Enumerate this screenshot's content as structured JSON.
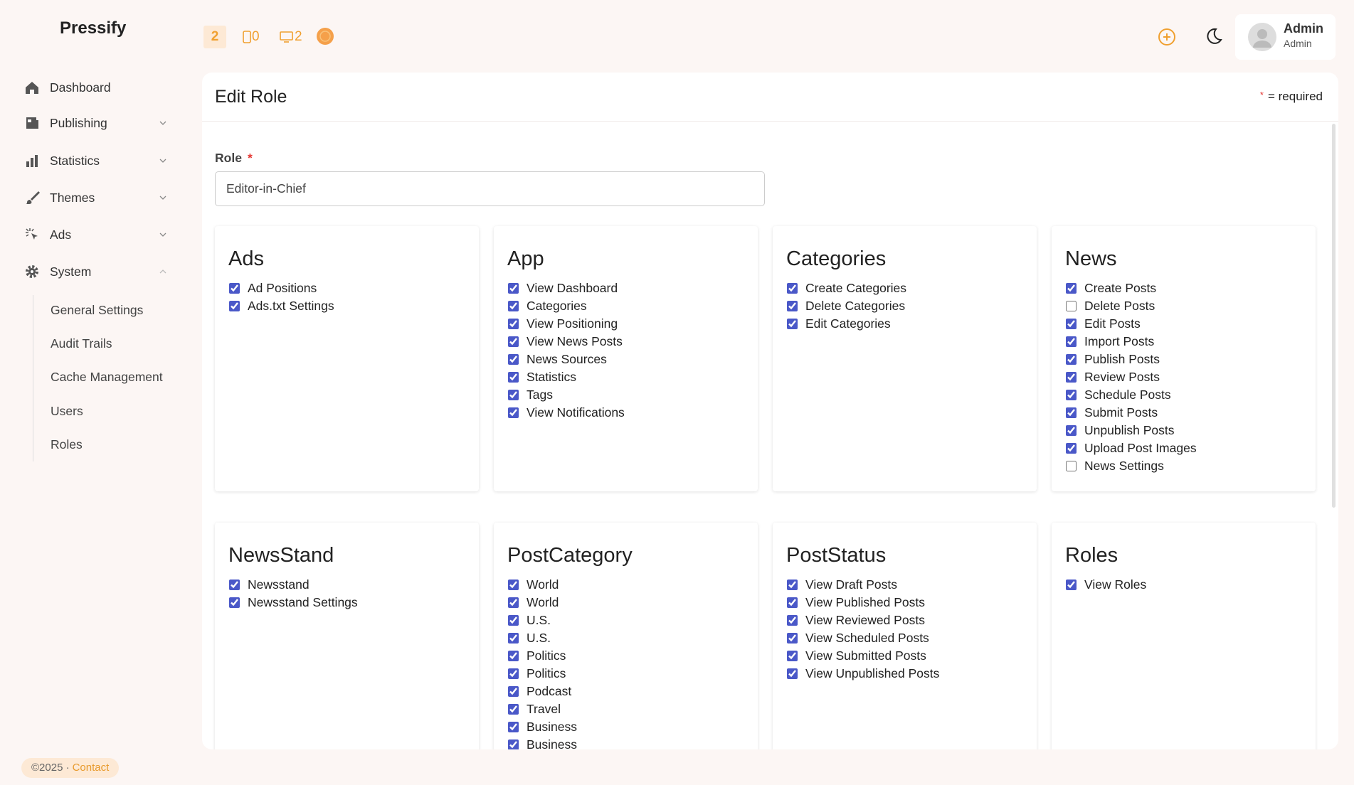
{
  "brand": "Pressify",
  "topbar": {
    "badges": [
      "2",
      "0",
      "2"
    ],
    "user": {
      "name": "Admin",
      "role": "Admin"
    }
  },
  "sidebar": {
    "items": [
      "Dashboard",
      "Publishing",
      "Statistics",
      "Themes",
      "Ads",
      "System"
    ],
    "system_children": [
      "General Settings",
      "Audit Trails",
      "Cache Management",
      "Users",
      "Roles"
    ]
  },
  "footer": {
    "copyright": "©2025 ·",
    "link": "Contact"
  },
  "page": {
    "title": "Edit Role",
    "required_mark": "*",
    "required_note": "= required",
    "role_label": "Role",
    "role_value": "Editor-in-Chief",
    "groups": [
      {
        "title": "Ads",
        "items": [
          {
            "label": "Ad Positions",
            "checked": true
          },
          {
            "label": "Ads.txt Settings",
            "checked": true
          }
        ]
      },
      {
        "title": "App",
        "items": [
          {
            "label": "View Dashboard",
            "checked": true
          },
          {
            "label": "Categories",
            "checked": true
          },
          {
            "label": "View Positioning",
            "checked": true
          },
          {
            "label": "View News Posts",
            "checked": true
          },
          {
            "label": "News Sources",
            "checked": true
          },
          {
            "label": "Statistics",
            "checked": true
          },
          {
            "label": "Tags",
            "checked": true
          },
          {
            "label": "View Notifications",
            "checked": true
          }
        ]
      },
      {
        "title": "Categories",
        "items": [
          {
            "label": "Create Categories",
            "checked": true
          },
          {
            "label": "Delete Categories",
            "checked": true
          },
          {
            "label": "Edit Categories",
            "checked": true
          }
        ]
      },
      {
        "title": "News",
        "items": [
          {
            "label": "Create Posts",
            "checked": true
          },
          {
            "label": "Delete Posts",
            "checked": false
          },
          {
            "label": "Edit Posts",
            "checked": true
          },
          {
            "label": "Import Posts",
            "checked": true
          },
          {
            "label": "Publish Posts",
            "checked": true
          },
          {
            "label": "Review Posts",
            "checked": true
          },
          {
            "label": "Schedule Posts",
            "checked": true
          },
          {
            "label": "Submit Posts",
            "checked": true
          },
          {
            "label": "Unpublish Posts",
            "checked": true
          },
          {
            "label": "Upload Post Images",
            "checked": true
          },
          {
            "label": "News Settings",
            "checked": false
          }
        ]
      },
      {
        "title": "NewsStand",
        "items": [
          {
            "label": "Newsstand",
            "checked": true
          },
          {
            "label": "Newsstand Settings",
            "checked": true
          }
        ]
      },
      {
        "title": "PostCategory",
        "items": [
          {
            "label": "World",
            "checked": true
          },
          {
            "label": "World",
            "checked": true
          },
          {
            "label": "U.S.",
            "checked": true
          },
          {
            "label": "U.S.",
            "checked": true
          },
          {
            "label": "Politics",
            "checked": true
          },
          {
            "label": "Politics",
            "checked": true
          },
          {
            "label": "Podcast",
            "checked": true
          },
          {
            "label": "Travel",
            "checked": true
          },
          {
            "label": "Business",
            "checked": true
          },
          {
            "label": "Business",
            "checked": true
          }
        ]
      },
      {
        "title": "PostStatus",
        "items": [
          {
            "label": "View Draft Posts",
            "checked": true
          },
          {
            "label": "View Published Posts",
            "checked": true
          },
          {
            "label": "View Reviewed Posts",
            "checked": true
          },
          {
            "label": "View Scheduled Posts",
            "checked": true
          },
          {
            "label": "View Submitted Posts",
            "checked": true
          },
          {
            "label": "View Unpublished Posts",
            "checked": true
          }
        ]
      },
      {
        "title": "Roles",
        "items": [
          {
            "label": "View Roles",
            "checked": true
          }
        ]
      }
    ]
  }
}
